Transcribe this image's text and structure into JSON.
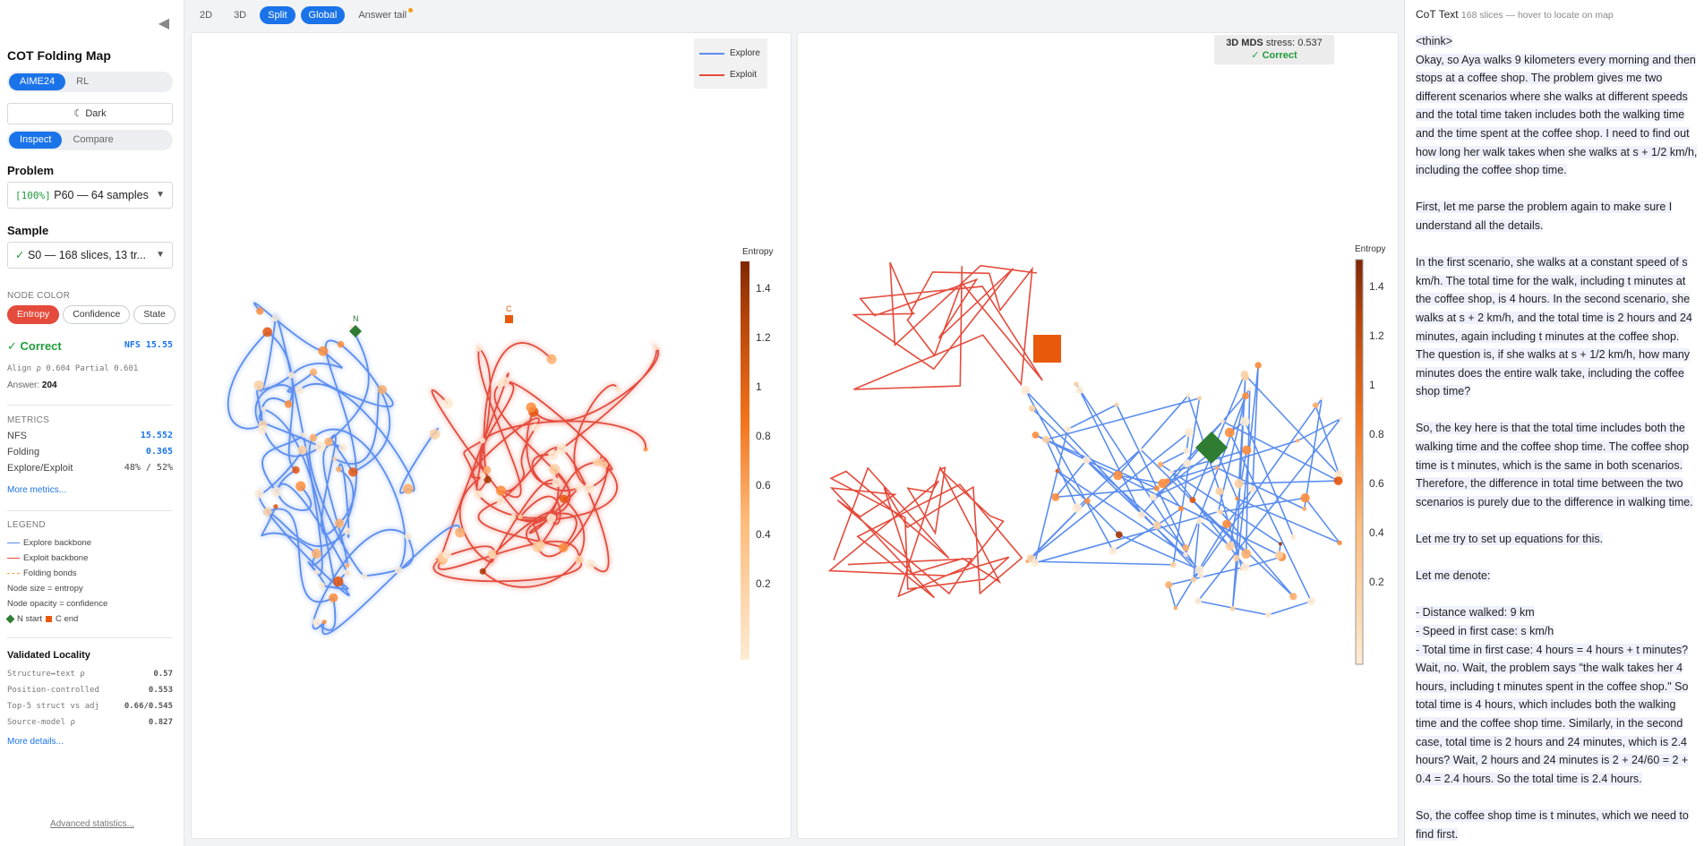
{
  "sidebar": {
    "collapse_icon": "◀",
    "title": "COT Folding Map",
    "dataset_options": [
      "AIME24",
      "RL"
    ],
    "dark_label": "☾ Dark",
    "mode_options": [
      "Inspect",
      "Compare"
    ],
    "problem_label": "Problem",
    "problem_tag": "[100%]",
    "problem_value": "P60 — 64 samples",
    "sample_label": "Sample",
    "sample_check": "✓",
    "sample_value": "S0 — 168 slices, 13 tr...",
    "node_color_label": "NODE COLOR",
    "node_color_options": [
      "Entropy",
      "Confidence",
      "State"
    ],
    "correct_label": "✓ Correct",
    "nfs_badge": "NFS 15.55",
    "align_text": "Align ρ 0.604 Partial 0.601",
    "answer_label": "Answer:",
    "answer_value": "204",
    "metrics_label": "METRICS",
    "metrics": [
      {
        "name": "NFS",
        "value": "15.552",
        "blue": true
      },
      {
        "name": "Folding",
        "value": "0.365",
        "blue": true
      },
      {
        "name": "Explore/Exploit",
        "value": "48% / 52%",
        "blue": false
      }
    ],
    "more_metrics": "More metrics...",
    "legend_label": "LEGEND",
    "legend": {
      "explore": "Explore backbone",
      "exploit": "Exploit backbone",
      "bonds": "Folding bonds",
      "size": "Node size = entropy",
      "opacity": "Node opacity = confidence",
      "n_start": "N start",
      "c_end": "C end"
    },
    "locality_title": "Validated Locality",
    "locality": [
      {
        "name": "Structure↔text ρ",
        "value": "0.57"
      },
      {
        "name": "Position-controlled",
        "value": "0.553"
      },
      {
        "name": "Top-5 struct vs adj",
        "value": "0.66/0.545"
      },
      {
        "name": "Source-model ρ",
        "value": "0.827"
      }
    ],
    "more_details": "More details...",
    "advanced": "Advanced statistics..."
  },
  "toolbar": {
    "items": [
      {
        "label": "2D",
        "active": false
      },
      {
        "label": "3D",
        "active": false
      },
      {
        "label": "Split",
        "active": true
      },
      {
        "label": "Global",
        "active": true
      },
      {
        "label": "Answer tail",
        "active": false
      }
    ]
  },
  "map2d": {
    "legend_explore": "Explore",
    "legend_exploit": "Exploit",
    "n_label": "N",
    "c_label": "C",
    "colorbar_title": "Entropy",
    "colorbar_ticks": [
      "1.4",
      "1.2",
      "1",
      "0.8",
      "0.6",
      "0.4",
      "0.2"
    ]
  },
  "map3d": {
    "stress_label": "3D MDS",
    "stress_value": "stress: 0.537",
    "correct": "✓ Correct",
    "colorbar_title": "Entropy",
    "colorbar_ticks": [
      "1.4",
      "1.2",
      "1",
      "0.8",
      "0.6",
      "0.4",
      "0.2"
    ]
  },
  "colors": {
    "explore": "#5b8def",
    "exploit": "#e54b3c",
    "start": "#2e7d32",
    "end": "#e8590c",
    "accent": "#1a73e8"
  },
  "cot": {
    "title": "CoT Text",
    "subtitle": "168 slices — hover to locate on map",
    "paragraphs": [
      "<think>\nOkay, so Aya walks 9 kilometers every morning and then stops at a coffee shop. The problem gives me two different scenarios where she walks at different speeds and the total time taken includes both the walking time and the time spent at the coffee shop. I need to find out how long her walk takes when she walks at s + 1/2 km/h, including the coffee shop time.",
      "First, let me parse the problem again to make sure I understand all the details.",
      "In the first scenario, she walks at a constant speed of s km/h. The total time for the walk, including t minutes at the coffee shop, is 4 hours. In the second scenario, she walks at s + 2 km/h, and the total time is 2 hours and 24 minutes, again including t minutes at the coffee shop. The question is, if she walks at s + 1/2 km/h, how many minutes does the entire walk take, including the coffee shop time?",
      "So, the key here is that the total time includes both the walking time and the coffee shop time. The coffee shop time is t minutes, which is the same in both scenarios. Therefore, the difference in total time between the two scenarios is purely due to the difference in walking time.",
      "Let me try to set up equations for this.",
      "Let me denote:",
      "- Distance walked: 9 km\n- Speed in first case: s km/h\n- Total time in first case: 4 hours = 4 hours + t minutes? Wait, no. Wait, the problem says \"the walk takes her 4 hours, including t minutes spent in the coffee shop.\" So total time is 4 hours, which includes both the walking time and the coffee shop time. Similarly, in the second case, total time is 2 hours and 24 minutes, which is 2.4 hours? Wait, 2 hours and 24 minutes is 2 + 24/60 = 2 + 0.4 = 2.4 hours. So the total time is 2.4 hours.",
      "So, the coffee shop time is t minutes, which we need to find first."
    ]
  }
}
